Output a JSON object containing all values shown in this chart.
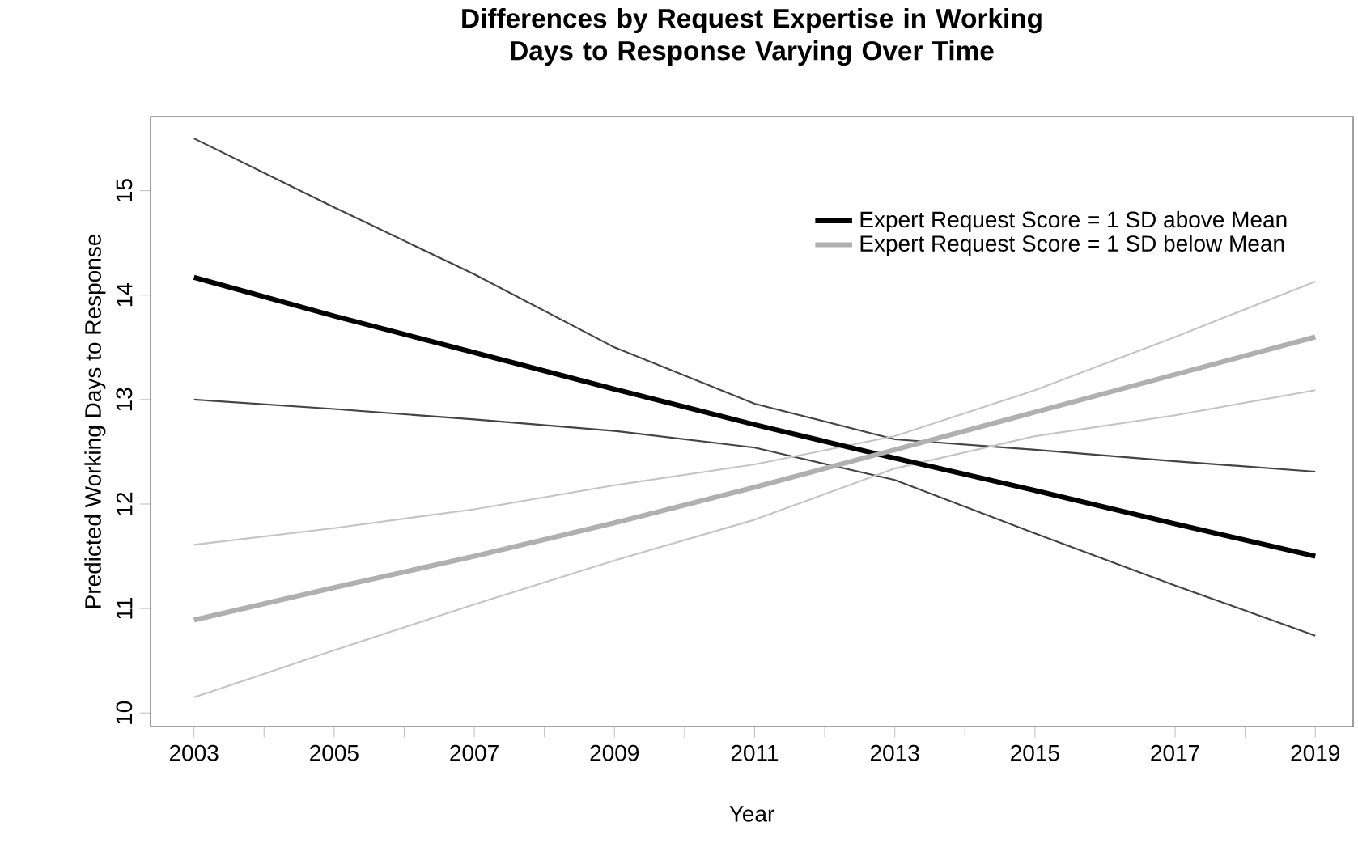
{
  "chart_data": {
    "type": "line",
    "title": "Differences by Request Expertise in Working Days to Response Varying Over Time",
    "xlabel": "Year",
    "ylabel": "Predicted Working Days to Response",
    "x": [
      2003,
      2005,
      2007,
      2009,
      2011,
      2013,
      2015,
      2017,
      2019
    ],
    "series": [
      {
        "color": "#444444",
        "values": [
          15.5,
          14.84,
          14.2,
          13.5,
          12.96,
          12.62,
          12.52,
          12.41,
          12.31
        ]
      },
      {
        "color": "#444444",
        "values": [
          13.0,
          12.91,
          12.81,
          12.7,
          12.54,
          12.23,
          11.72,
          11.22,
          10.74
        ]
      },
      {
        "color": "#c4c4c4",
        "values": [
          11.61,
          11.77,
          11.95,
          12.18,
          12.38,
          12.65,
          13.09,
          13.6,
          14.13
        ]
      },
      {
        "color": "#c4c4c4",
        "values": [
          10.15,
          10.6,
          11.04,
          11.46,
          11.85,
          12.34,
          12.65,
          12.85,
          13.09
        ]
      },
      {
        "name": "Expert Request Score = 1 SD above Mean",
        "color": "#000000",
        "values": [
          14.17,
          13.8,
          13.45,
          13.1,
          12.76,
          12.44,
          12.13,
          11.81,
          11.5
        ]
      },
      {
        "name": "Expert Request Score = 1 SD below Mean",
        "color": "#b0b0b0",
        "values": [
          10.89,
          11.2,
          11.5,
          11.82,
          12.16,
          12.52,
          12.88,
          13.24,
          13.6
        ]
      }
    ],
    "xlim": [
      2002.38,
      2019.54
    ],
    "ylim": [
      9.87,
      15.71
    ],
    "xticks": [
      2003,
      {
        "value": 2004,
        "label": null
      },
      2005,
      {
        "value": 2006,
        "label": null
      },
      2007,
      {
        "value": 2008,
        "label": null
      },
      2009,
      {
        "value": 2010,
        "label": null
      },
      2011,
      {
        "value": 2012,
        "label": null
      },
      2013,
      {
        "value": 2014,
        "label": null
      },
      2015,
      {
        "value": 2016,
        "label": null
      },
      2017,
      {
        "value": 2018,
        "label": null
      },
      2019
    ],
    "yticks": [
      10,
      11,
      12,
      13,
      14,
      15
    ],
    "legend": "top right",
    "grid": false,
    "marker": "none",
    "line_style": "solid"
  }
}
